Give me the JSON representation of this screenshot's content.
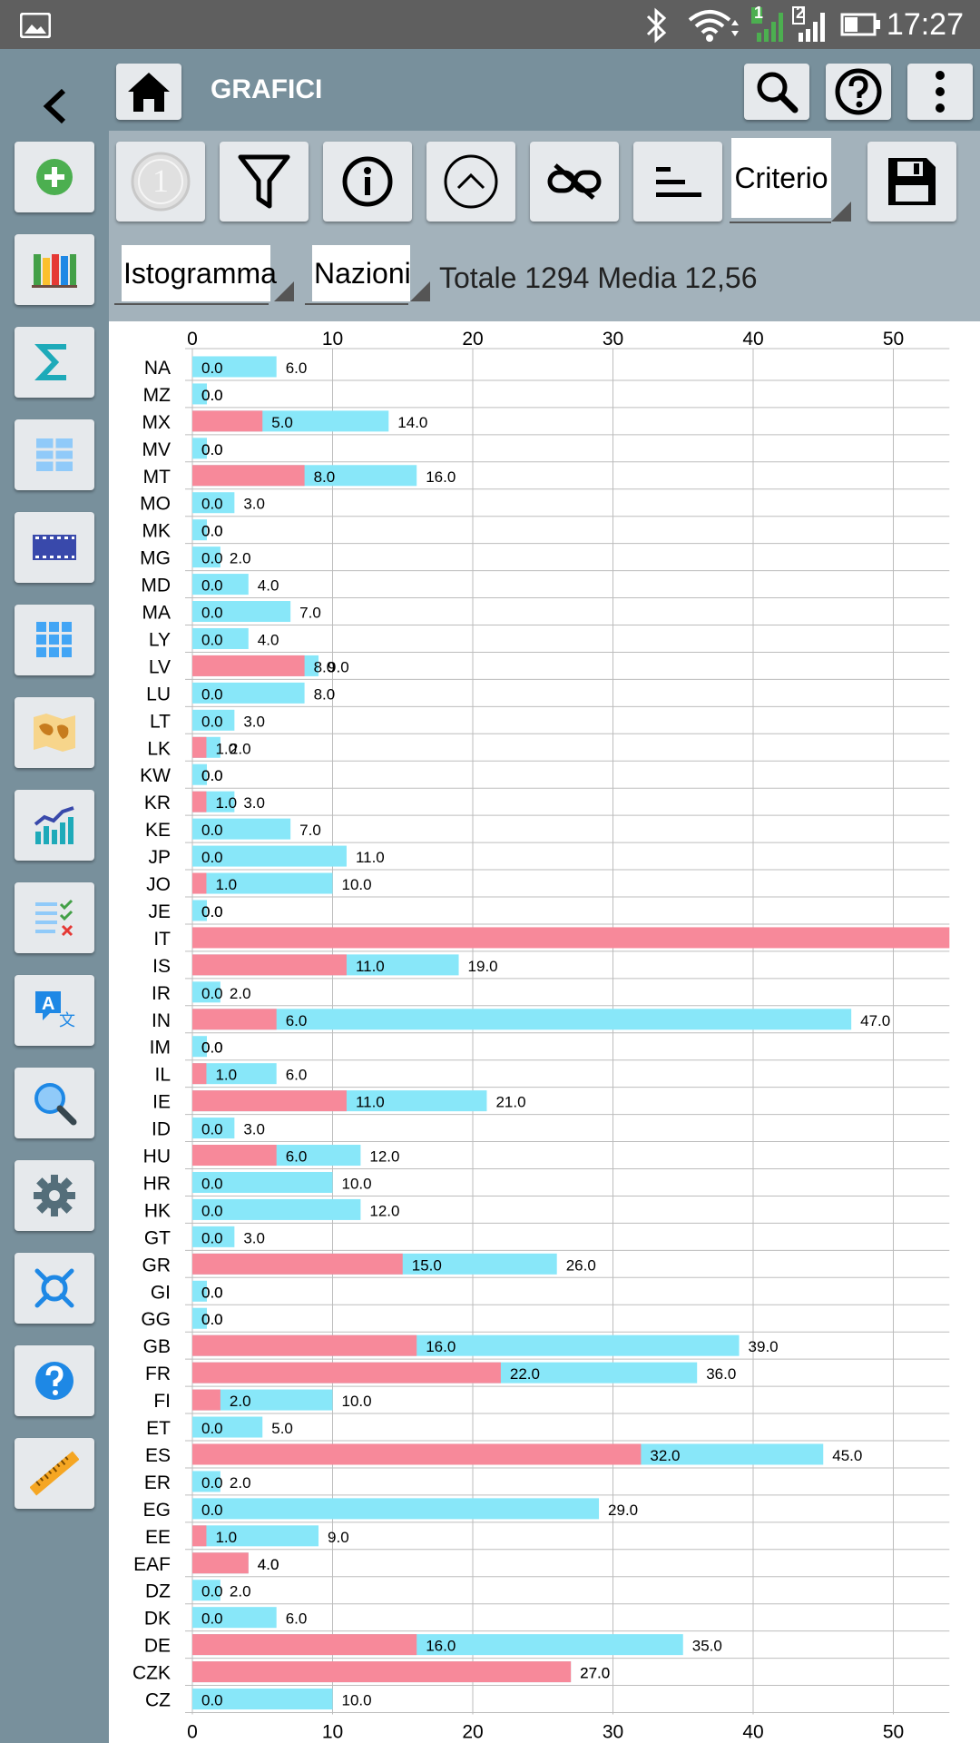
{
  "status_bar": {
    "time": "17:27",
    "icons": [
      "image-icon",
      "bluetooth-icon",
      "wifi-icon",
      "signal-sim1-icon",
      "signal-sim2-icon",
      "battery-icon"
    ],
    "sim1_label": "1",
    "sim2_label": "2"
  },
  "header": {
    "title": "GRAFICI"
  },
  "toolbar": {
    "criterio_label": "Criterio",
    "coin_label": "1"
  },
  "controls": {
    "chart_type": "Istogramma",
    "group_by": "Nazioni",
    "summary": "Totale 1294 Media 12,56"
  },
  "colors": {
    "pink": "#f7899a",
    "cyan": "#88e7f9",
    "green": "#4caf50",
    "blue": "#1e88e5",
    "teal": "#1eaab9"
  },
  "sidebar_icons": [
    "back-arrow-icon",
    "add-icon",
    "books-icon",
    "sigma-icon",
    "table-icon",
    "film-icon",
    "grid-icon",
    "map-icon",
    "chart-icon",
    "checklist-icon",
    "translate-icon",
    "magnifier-icon",
    "settings-icon",
    "satellite-icon",
    "help-icon",
    "ruler-icon"
  ],
  "chart_data": {
    "type": "bar",
    "orientation": "horizontal",
    "x_ticks": [
      0,
      10,
      20,
      30,
      40,
      50
    ],
    "xlim": [
      0,
      54
    ],
    "grid": true,
    "categories": [
      "NA",
      "MZ",
      "MX",
      "MV",
      "MT",
      "MO",
      "MK",
      "MG",
      "MD",
      "MA",
      "LY",
      "LV",
      "LU",
      "LT",
      "LK",
      "KW",
      "KR",
      "KE",
      "JP",
      "JO",
      "JE",
      "IT",
      "IS",
      "IR",
      "IN",
      "IM",
      "IL",
      "IE",
      "ID",
      "HU",
      "HR",
      "HK",
      "GT",
      "GR",
      "GI",
      "GG",
      "GB",
      "FR",
      "FI",
      "ET",
      "ES",
      "ER",
      "EG",
      "EE",
      "EAF",
      "DZ",
      "DK",
      "DE",
      "CZK",
      "CZ"
    ],
    "series": [
      {
        "color": "#f7899a",
        "values": [
          0,
          0,
          5,
          0,
          8,
          0,
          0,
          0,
          0,
          0,
          0,
          8,
          0,
          0,
          1,
          0,
          1,
          0,
          0,
          1,
          0,
          54,
          11,
          0,
          6,
          0,
          1,
          11,
          0,
          6,
          0,
          0,
          0,
          15,
          0,
          0,
          16,
          22,
          2,
          0,
          32,
          0,
          0,
          1,
          4,
          0,
          0,
          16,
          27,
          0
        ]
      },
      {
        "color": "#88e7f9",
        "values": [
          6,
          0,
          14,
          0,
          16,
          3,
          0,
          2,
          4,
          7,
          4,
          9,
          8,
          3,
          2,
          0,
          3,
          7,
          11,
          10,
          0,
          null,
          19,
          2,
          47,
          0,
          6,
          21,
          3,
          12,
          10,
          12,
          3,
          26,
          0,
          0,
          39,
          36,
          10,
          5,
          45,
          2,
          29,
          9,
          4,
          2,
          6,
          35,
          27,
          10
        ]
      }
    ],
    "label_format": "0.0"
  }
}
